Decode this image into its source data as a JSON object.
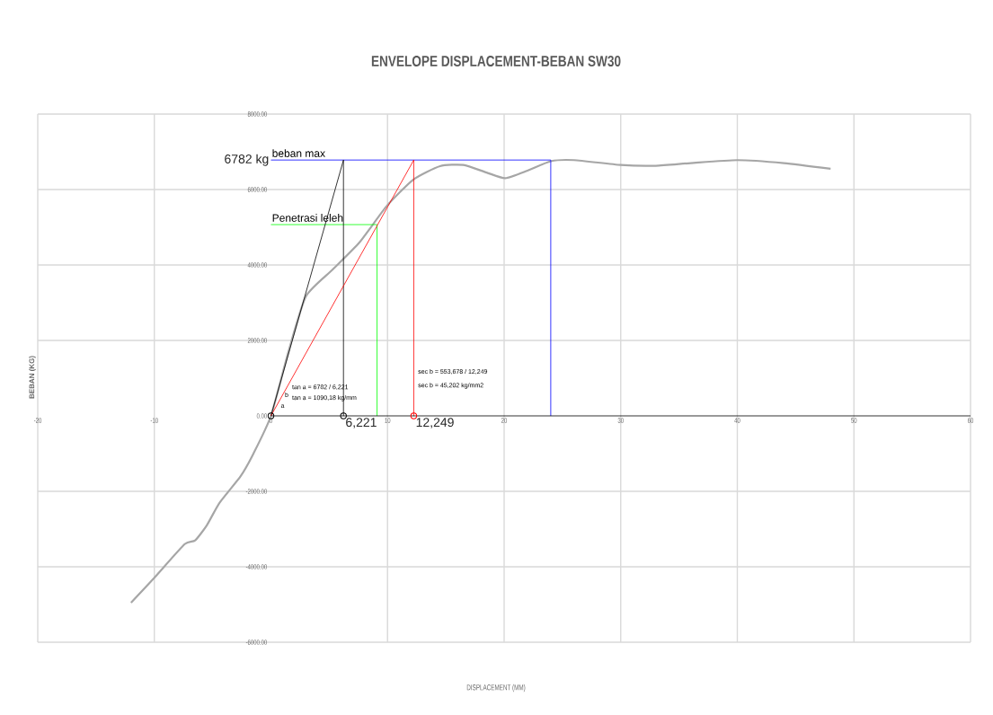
{
  "chart_data": {
    "type": "line",
    "title": "ENVELOPE DISPLACEMENT-BEBAN SW30",
    "xlabel": "DISPLACEMENT (MM)",
    "ylabel": "BEBAN (KG)",
    "xlim": [
      -20,
      60
    ],
    "ylim": [
      -6000,
      8000
    ],
    "xticks": [
      -20,
      -10,
      0,
      10,
      20,
      30,
      40,
      50,
      60
    ],
    "yticks": [
      {
        "value": -6000,
        "label": "-6000.00"
      },
      {
        "value": -4000,
        "label": "-4000.00"
      },
      {
        "value": -2000,
        "label": "-2000.00"
      },
      {
        "value": 0,
        "label": "0.00"
      },
      {
        "value": 2000,
        "label": "2000.00"
      },
      {
        "value": 4000,
        "label": "4000.00"
      },
      {
        "value": 6000,
        "label": "6000.00"
      },
      {
        "value": 8000,
        "label": "8000.00"
      }
    ],
    "grid": true,
    "series": [
      {
        "color": "#a6a6a6",
        "x": [
          -12,
          -10,
          -7.4,
          -6.5,
          -5.5,
          -4.4,
          -2.6,
          -1.5,
          0,
          1.5,
          3,
          5.3,
          7.6,
          9.9,
          12.2,
          14.5,
          16.5,
          18.5,
          20.1,
          22,
          24,
          26,
          30,
          33,
          36,
          40,
          44,
          48
        ],
        "values": [
          -4950,
          -4290,
          -3400,
          -3300,
          -2900,
          -2300,
          -1600,
          -1000,
          0,
          1700,
          3170,
          3880,
          4600,
          5550,
          6260,
          6620,
          6650,
          6450,
          6300,
          6500,
          6750,
          6780,
          6650,
          6630,
          6700,
          6780,
          6700,
          6550
        ]
      },
      {
        "name": "beban max",
        "color": "#0000ff",
        "x": [
          0,
          24,
          24
        ],
        "values": [
          6782,
          6782,
          0
        ]
      },
      {
        "name": "Penetrasi leleh",
        "color": "#00ff00",
        "x": [
          0,
          9.1,
          9.1
        ],
        "values": [
          5070,
          5070,
          0
        ]
      },
      {
        "color": "#000000",
        "x": [
          0,
          6.221,
          6.221
        ],
        "values": [
          0,
          6782,
          0
        ]
      },
      {
        "color": "#ff0000",
        "x": [
          0,
          12.249,
          12.249
        ],
        "values": [
          0,
          6782,
          0
        ]
      },
      {
        "color": "#000000",
        "x": [
          0,
          60
        ],
        "values": [
          0,
          0
        ]
      },
      {
        "type": "scatter",
        "marker": "circle",
        "x": [
          0,
          6.221,
          12.249
        ],
        "values": [
          0,
          0,
          0
        ],
        "colors": [
          "#000000",
          "#000000",
          "#ff0000"
        ]
      }
    ],
    "annotations": [
      {
        "text": "6782 kg",
        "x": 0,
        "y": 6782
      },
      {
        "text": "6,221",
        "x": 6.221,
        "y": 0
      },
      {
        "text": "12,249",
        "x": 12.249,
        "y": 0
      },
      "tan a = 6782 / 6,221",
      "tan a = 1090,18 kg/mm",
      "sec b = 553,678 / 12,249",
      "sec b = 45,202 kg/mm2",
      "a",
      "b"
    ]
  }
}
